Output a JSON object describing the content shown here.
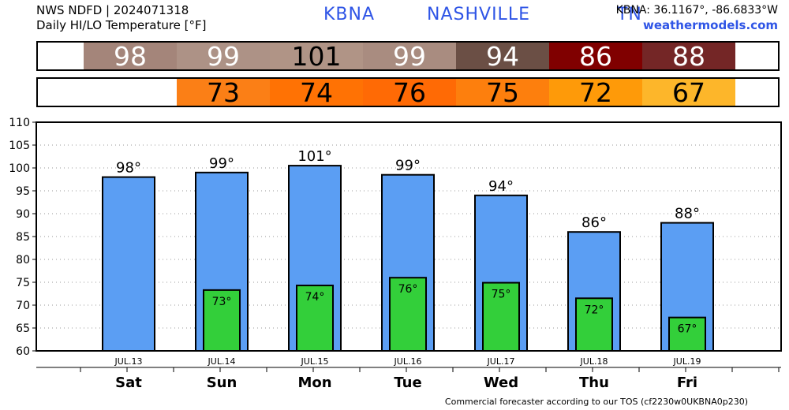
{
  "header": {
    "source_line": "NWS NDFD | 2024071318",
    "product_line": "Daily HI/LO Temperature [°F]",
    "station_title": "KBNA   NASHVILLE     TN",
    "coords": "KBNA: 36.1167°, -86.6833°W",
    "site": "weathermodels.com"
  },
  "footer": {
    "note": "Commercial forecaster according to our TOS (cf2230w0UKBNA0p230)"
  },
  "colors": {
    "hi_bar": "#5b9ef3",
    "lo_bar": "#33cf3a",
    "hi_strip": [
      "#a4857a",
      "#ad9286",
      "#b09486",
      "#a98c80",
      "#6b4f45",
      "#800000",
      "#742626"
    ],
    "lo_strip": [
      "#fb7f16",
      "#ff7204",
      "#ff6a05",
      "#fd7f0d",
      "#fe9a09",
      "#fdb62a"
    ],
    "hi_strip_text": [
      "#ffffff",
      "#ffffff",
      "#000000",
      "#ffffff",
      "#ffffff",
      "#ffffff",
      "#ffffff"
    ]
  },
  "chart_data": {
    "type": "bar",
    "title": "Daily HI/LO Temperature [°F]",
    "categories": [
      "Sat",
      "Sun",
      "Mon",
      "Tue",
      "Wed",
      "Thu",
      "Fri"
    ],
    "dates": [
      "JUL.13",
      "JUL.14",
      "JUL.15",
      "JUL.16",
      "JUL.17",
      "JUL.18",
      "JUL.19"
    ],
    "series": [
      {
        "name": "HI",
        "values": [
          98,
          99,
          100.5,
          98.5,
          94,
          86,
          88
        ],
        "labels": [
          "98°",
          "99°",
          "101°",
          "99°",
          "94°",
          "86°",
          "88°"
        ]
      },
      {
        "name": "LO",
        "values": [
          null,
          73.3,
          74.3,
          76,
          74.9,
          71.5,
          67.3
        ],
        "labels": [
          "",
          "73°",
          "74°",
          "76°",
          "75°",
          "72°",
          "67°"
        ]
      }
    ],
    "strip_hi": [
      "98",
      "99",
      "101",
      "99",
      "94",
      "86",
      "88"
    ],
    "strip_lo": [
      "73",
      "74",
      "76",
      "75",
      "72",
      "67"
    ],
    "yticks": [
      "110",
      "105",
      "100",
      "95",
      "90",
      "85",
      "80",
      "75",
      "70",
      "65",
      "60"
    ],
    "ylim": [
      60,
      110
    ],
    "grid": true
  }
}
